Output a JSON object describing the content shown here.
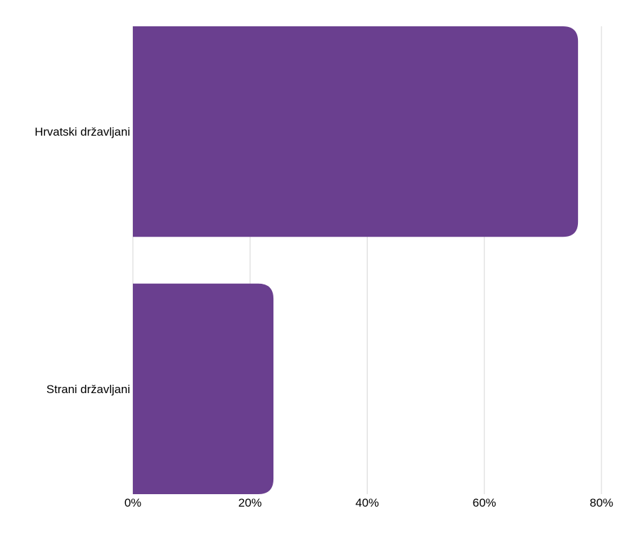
{
  "chart_data": {
    "type": "bar",
    "orientation": "horizontal",
    "categories": [
      "Hrvatski državljani",
      "Strani državljani"
    ],
    "values": [
      76,
      24
    ],
    "xlim": [
      0,
      80
    ],
    "x_ticks": [
      0,
      20,
      40,
      60,
      80
    ],
    "x_tick_labels": [
      "0%",
      "20%",
      "40%",
      "60%",
      "80%"
    ],
    "title": "",
    "xlabel": "",
    "ylabel": "",
    "grid": true,
    "legend": "none",
    "bar_color": "#6a3f8f"
  }
}
